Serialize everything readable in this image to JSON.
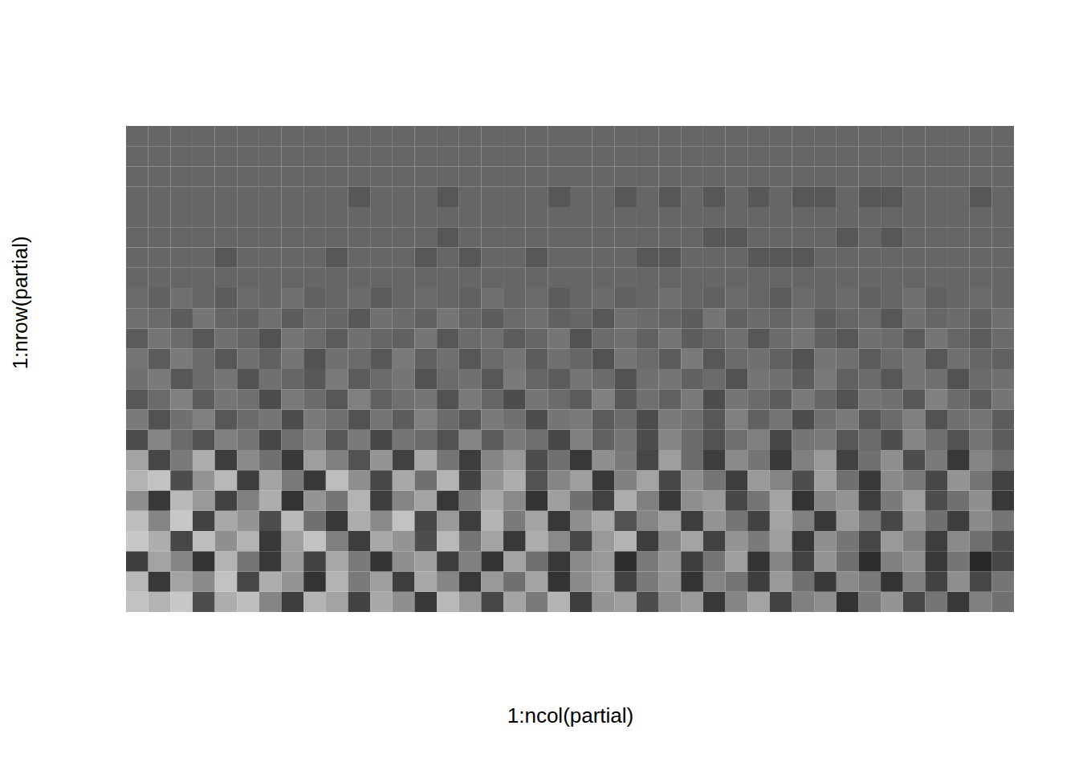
{
  "chart_data": {
    "type": "heatmap",
    "x_label": "1:ncol(partial)",
    "y_label": "1:nrow(partial)",
    "tick_labels": false,
    "xlim": [
      0.5,
      40.5
    ],
    "ylim": [
      0.5,
      24.5
    ],
    "zlim": [
      -2,
      3
    ],
    "colors": [
      "#000000",
      "#ffffff"
    ],
    "z": [
      [
        1.8,
        1.5,
        1.9,
        -0.5,
        1.4,
        1.7,
        0.6,
        -0.8,
        1.5,
        1.2,
        -0.7,
        1.3,
        0.8,
        -0.9,
        1.6,
        1.0,
        -0.6,
        1.2,
        0.4,
        1.5,
        -0.8,
        0.9,
        1.1,
        -0.5,
        0.7,
        1.0,
        -0.9,
        0.6,
        1.2,
        -0.7,
        0.5,
        0.8,
        -1.0,
        0.4,
        0.9,
        -0.6,
        0.3,
        -0.9,
        0.5,
        0.2
      ],
      [
        1.6,
        -0.9,
        1.2,
        0.7,
        1.8,
        -0.6,
        1.4,
        0.9,
        -1.0,
        1.5,
        0.4,
        1.1,
        -0.8,
        1.3,
        0.6,
        -0.9,
        1.0,
        0.2,
        1.2,
        -1.0,
        0.7,
        1.1,
        -0.7,
        0.4,
        0.9,
        -1.0,
        0.6,
        0.3,
        -0.8,
        1.0,
        0.2,
        -0.9,
        0.7,
        0.4,
        -1.0,
        0.5,
        -0.7,
        0.8,
        -0.6,
        0.3
      ],
      [
        -0.8,
        1.2,
        0.6,
        -1.0,
        1.5,
        0.3,
        -0.9,
        1.0,
        -0.7,
        1.3,
        0.4,
        -1.0,
        0.8,
        1.1,
        -0.8,
        0.5,
        -1.0,
        1.2,
        0.2,
        -0.9,
        0.7,
        1.0,
        -1.1,
        0.4,
        0.9,
        -0.8,
        0.3,
        1.1,
        -1.0,
        0.6,
        -0.7,
        0.9,
        0.2,
        -1.1,
        0.5,
        0.8,
        -0.9,
        0.3,
        -1.2,
        -0.6
      ],
      [
        1.9,
        1.4,
        -0.6,
        1.7,
        0.8,
        1.5,
        -0.9,
        1.1,
        1.8,
        0.5,
        -0.8,
        1.3,
        0.9,
        -0.5,
        1.6,
        0.3,
        1.2,
        -0.9,
        1.4,
        0.7,
        -0.6,
        1.0,
        1.5,
        -0.8,
        0.6,
        1.2,
        -0.7,
        0.9,
        0.4,
        1.1,
        -0.9,
        0.8,
        0.3,
        -0.6,
        1.0,
        0.5,
        -0.8,
        0.7,
        0.2,
        -0.5
      ],
      [
        1.7,
        0.6,
        1.9,
        -0.7,
        1.3,
        0.9,
        -0.5,
        1.6,
        0.2,
        -0.9,
        1.4,
        0.7,
        1.8,
        -0.6,
        1.0,
        -0.8,
        1.5,
        0.4,
        1.2,
        -0.9,
        0.8,
        1.3,
        -0.4,
        0.6,
        1.1,
        -0.8,
        0.9,
        0.3,
        -0.7,
        1.2,
        0.5,
        -0.9,
        1.0,
        0.4,
        -0.6,
        0.9,
        0.2,
        -0.8,
        0.7,
        0.3
      ],
      [
        0.8,
        -0.9,
        1.6,
        1.0,
        -0.7,
        0.5,
        1.4,
        -1.0,
        0.9,
        0.3,
        1.5,
        -0.8,
        0.6,
        1.2,
        -0.9,
        0.4,
        1.3,
        0.7,
        -1.0,
        1.1,
        0.2,
        -0.7,
        1.4,
        0.5,
        -0.9,
        0.8,
        1.0,
        -0.6,
        0.3,
        1.2,
        -1.0,
        0.6,
        0.9,
        -0.8,
        0.4,
        1.1,
        -0.5,
        0.2,
        0.8,
        -0.9
      ],
      [
        1.5,
        1.8,
        -0.5,
        0.9,
        1.6,
        -0.8,
        1.2,
        0.4,
        -0.9,
        1.7,
        0.8,
        -0.6,
        1.3,
        0.2,
        1.5,
        -0.7,
        0.9,
        1.4,
        -0.4,
        0.6,
        1.1,
        -0.9,
        0.5,
        1.2,
        -0.6,
        0.8,
        0.3,
        -0.8,
        1.0,
        0.6,
        -0.5,
        1.1,
        0.2,
        -0.9,
        0.7,
        0.4,
        -0.6,
        0.9,
        0.3,
        -0.7
      ],
      [
        1.2,
        -0.6,
        0.4,
        1.4,
        -0.8,
        0.7,
        0.2,
        -0.9,
        1.1,
        0.5,
        -0.4,
        0.9,
        -0.7,
        1.3,
        0.3,
        -0.8,
        0.6,
        1.0,
        -0.5,
        0.2,
        -0.9,
        0.8,
        0.4,
        -0.6,
        1.1,
        0.1,
        -0.8,
        0.7,
        0.3,
        -0.9,
        0.5,
        1.0,
        -0.7,
        0.2,
        0.8,
        -0.5,
        0.4,
        -0.9,
        0.6,
        0.1
      ],
      [
        -0.5,
        0.6,
        0.1,
        -0.4,
        0.5,
        0.3,
        -0.6,
        0.2,
        0.5,
        -0.3,
        0.4,
        -0.6,
        0.3,
        0.1,
        -0.4,
        0.6,
        -0.2,
        0.4,
        0.2,
        -0.6,
        0.5,
        -0.1,
        0.3,
        -0.5,
        0.6,
        0.1,
        -0.4,
        0.2,
        0.5,
        -0.6,
        0.3,
        0.4,
        -0.3,
        0.1,
        -0.5,
        0.6,
        0.2,
        -0.4,
        0.3,
        -0.2
      ],
      [
        0.4,
        -0.4,
        0.2,
        0.5,
        -0.3,
        0.1,
        0.3,
        -0.5,
        0.4,
        0.2,
        -0.4,
        0.3,
        -0.2,
        0.5,
        0.1,
        -0.3,
        0.4,
        0.2,
        -0.5,
        0.3,
        0.4,
        -0.2,
        0.1,
        -0.5,
        0.4,
        0.2,
        -0.3,
        0.5,
        -0.1,
        0.3,
        -0.5,
        0.2,
        0.4,
        -0.3,
        0.1,
        0.5,
        -0.4,
        0.2,
        0.3,
        -0.2
      ],
      [
        -0.3,
        0.1,
        0.5,
        -0.2,
        0.3,
        0.2,
        -0.5,
        0.4,
        0.1,
        -0.3,
        0.5,
        -0.1,
        0.2,
        0.3,
        -0.4,
        0.4,
        0,
        -0.5,
        0.3,
        0.1,
        -0.2,
        0.5,
        -0.3,
        0.2,
        -0.1,
        0.4,
        -0.5,
        0.3,
        0.1,
        -0.2,
        0.4,
        0,
        -0.4,
        0.3,
        0.2,
        -0.3,
        0.5,
        0.1,
        -0.2,
        0.3
      ],
      [
        0.2,
        0.4,
        -0.3,
        0.1,
        0.3,
        -0.4,
        0.2,
        0,
        -0.3,
        0.4,
        -0.2,
        0.1,
        0.3,
        -0.4,
        0.1,
        0.2,
        -0.3,
        0.4,
        0,
        -0.2,
        0.3,
        0.1,
        -0.4,
        0.2,
        0.3,
        -0.1,
        0.1,
        -0.4,
        0.3,
        0.2,
        -0.2,
        0.4,
        -0.1,
        0.1,
        -0.3,
        0.3,
        0.2,
        -0.4,
        0.1,
        0.2
      ],
      [
        0.3,
        -0.2,
        0.4,
        0.1,
        -0.3,
        0.2,
        -0.1,
        0.3,
        -0.4,
        0.2,
        0.1,
        -0.3,
        0.4,
        -0.1,
        0.2,
        -0.3,
        0.1,
        0.3,
        -0.2,
        0.2,
        0,
        -0.4,
        0.3,
        0.1,
        -0.2,
        0.4,
        -0.3,
        0.1,
        0.2,
        -0.1,
        -0.4,
        0.3,
        0.2,
        -0.2,
        0.1,
        0.3,
        -0.3,
        0.2,
        0,
        -0.1
      ],
      [
        -0.2,
        0.3,
        0.1,
        -0.3,
        0.2,
        0,
        -0.4,
        0.3,
        0.1,
        -0.2,
        0.2,
        0,
        -0.1,
        0.3,
        -0.3,
        0.1,
        0.2,
        -0.2,
        0,
        0.3,
        -0.4,
        0.1,
        0.2,
        -0.1,
        0.3,
        -0.2,
        0,
        0.2,
        -0.3,
        0.1,
        0.3,
        -0.1,
        -0.3,
        0.2,
        0.1,
        -0.2,
        0.3,
        0,
        -0.2,
        0.1
      ],
      [
        0.2,
        0.1,
        -0.2,
        0.3,
        0,
        -0.1,
        0.2,
        -0.2,
        0.1,
        0,
        -0.3,
        0.2,
        0.1,
        -0.1,
        0.3,
        0,
        -0.2,
        0.1,
        0.2,
        -0.1,
        0,
        -0.3,
        0.2,
        0.1,
        0,
        -0.2,
        0.3,
        -0.1,
        0.1,
        0,
        0.2,
        -0.2,
        0,
        0.1,
        -0.3,
        0.2,
        0,
        0.1,
        -0.1,
        0.2
      ],
      [
        0.1,
        -0.1,
        0.2,
        0,
        -0.2,
        0.1,
        0,
        0.2,
        -0.1,
        0,
        0.1,
        -0.2,
        0,
        0.1,
        0,
        -0.1,
        0.2,
        0,
        0.1,
        -0.2,
        0,
        0.1,
        -0.1,
        0,
        0.2,
        0,
        -0.1,
        0.1,
        0,
        -0.2,
        0.1,
        0,
        0.1,
        -0.1,
        0,
        0.2,
        -0.1,
        0,
        0.1,
        0
      ],
      [
        0,
        0,
        0,
        0,
        0,
        0,
        0,
        0,
        0,
        0,
        0,
        0,
        0,
        0,
        0,
        0,
        0,
        0,
        0,
        0,
        0,
        0,
        0,
        0,
        0,
        0,
        0,
        0,
        0,
        0,
        0,
        0,
        0,
        0,
        0,
        0,
        0,
        0,
        0,
        0
      ],
      [
        0,
        0,
        0,
        0,
        -0.3,
        0,
        0,
        0,
        0,
        -0.3,
        0,
        0,
        0,
        -0.3,
        0,
        -0.3,
        0,
        0,
        -0.3,
        0,
        0,
        0,
        0,
        -0.3,
        -0.3,
        0,
        0,
        0,
        -0.3,
        -0.3,
        -0.3,
        0,
        0,
        0,
        0,
        0,
        0,
        0,
        0,
        0
      ],
      [
        0,
        0,
        0,
        0,
        0,
        0,
        0,
        0,
        0,
        0,
        0,
        0,
        0,
        0,
        -0.3,
        0,
        0,
        0,
        0,
        0,
        0,
        0,
        0,
        0,
        0,
        0,
        -0.3,
        -0.3,
        0,
        0,
        0,
        0,
        -0.3,
        0,
        -0.3,
        0,
        0,
        0,
        0,
        0
      ],
      [
        0,
        0,
        0,
        0,
        0,
        0,
        0,
        0,
        0,
        0,
        0,
        0,
        0,
        0,
        0,
        0,
        0,
        0,
        0,
        0,
        0,
        0,
        0,
        0,
        0,
        0,
        0,
        0,
        0,
        0,
        0,
        0,
        0,
        0,
        0,
        0,
        0,
        0,
        0,
        0
      ],
      [
        0,
        0,
        0,
        0,
        0,
        0,
        0,
        0,
        0,
        0,
        -0.3,
        0,
        0,
        0,
        -0.3,
        0,
        0,
        0,
        0,
        -0.3,
        0,
        0,
        -0.3,
        0,
        -0.3,
        0,
        -0.3,
        0,
        -0.3,
        0,
        -0.3,
        -0.3,
        0,
        -0.3,
        -0.3,
        0,
        0,
        0,
        -0.3,
        0
      ],
      [
        0,
        0,
        0,
        0,
        0,
        0,
        0,
        0,
        0,
        0,
        0,
        0,
        0,
        0,
        0,
        0,
        0,
        0,
        0,
        0,
        0,
        0,
        0,
        0,
        0,
        0,
        0,
        0,
        0,
        0,
        0,
        0,
        0,
        0,
        0,
        0,
        0,
        0,
        0,
        0
      ],
      [
        0,
        0,
        0,
        0,
        0,
        0,
        0,
        0,
        0,
        0,
        0,
        0,
        0,
        0,
        0,
        0,
        0,
        0,
        0,
        0,
        0,
        0,
        0,
        0,
        0,
        0,
        0,
        0,
        0,
        0,
        0,
        0,
        0,
        0,
        0,
        0,
        0,
        0,
        0,
        0
      ],
      [
        0,
        0,
        0,
        0,
        0,
        0,
        0,
        0,
        0,
        0,
        0,
        0,
        0,
        0,
        0,
        0,
        0,
        0,
        0,
        0,
        0,
        0,
        0,
        0,
        0,
        0,
        0,
        0,
        0,
        0,
        0,
        0,
        0,
        0,
        0,
        0,
        0,
        0,
        0,
        0
      ]
    ]
  }
}
